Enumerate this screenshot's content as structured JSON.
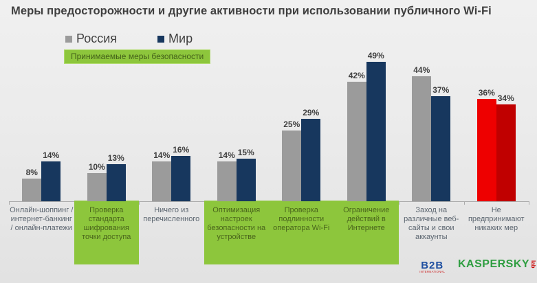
{
  "title": "Меры предосторожности и другие активности при использовании публичного Wi-Fi",
  "legend": {
    "series": [
      {
        "label": "Россия",
        "color": "#9B9B9B"
      },
      {
        "label": "Мир",
        "color": "#17375E"
      }
    ]
  },
  "badge": {
    "label": "Принимаемые меры безопасности",
    "bg": "#8DC63C"
  },
  "chart_data": {
    "type": "bar",
    "title": "Меры предосторожности и другие активности при использовании публичного Wi-Fi",
    "unit": "%",
    "categories": [
      "Онлайн-шоппинг / интернет-банкинг / онлайн-платежи",
      "Проверка стандарта шифрования точки доступа",
      "Ничего из перечисленного",
      "Оптимизация настроек безопасности на устройстве",
      "Проверка подлинности оператора Wi-Fi",
      "Ограничение действий в Интернете",
      "Заход на различные веб-сайты и свои аккаунты",
      "Не предпринимают никаких мер"
    ],
    "series": [
      {
        "name": "Россия",
        "color": "#9B9B9B",
        "values": [
          8,
          10,
          14,
          14,
          25,
          42,
          44,
          36
        ]
      },
      {
        "name": "Мир",
        "color": "#17375E",
        "values": [
          14,
          13,
          16,
          15,
          29,
          49,
          37,
          34
        ]
      }
    ],
    "ylim": [
      0,
      50
    ],
    "grid": false,
    "legend_position": "top-left",
    "security_measure_categories": [
      1,
      3,
      4,
      5
    ],
    "security_measures_label": "Принимаемые меры безопасности",
    "highlight": {
      "category_index": 7,
      "colors": [
        "#EE0000",
        "#C00000"
      ]
    }
  },
  "footer": {
    "b2b_logo": {
      "text": "B2B",
      "subtext": "INTERNATIONAL"
    },
    "kaspersky_logo": {
      "text": "KASPERSKY",
      "subtext": "lab"
    }
  }
}
